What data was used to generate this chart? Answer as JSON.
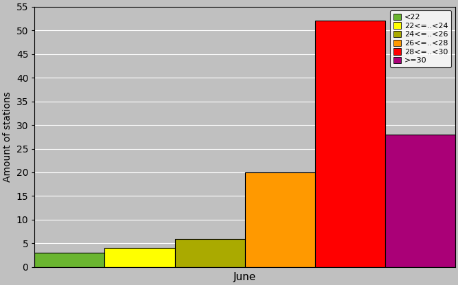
{
  "xlabel": "June",
  "ylabel": "Amount of stations",
  "ylim": [
    0,
    55
  ],
  "yticks": [
    0,
    5,
    10,
    15,
    20,
    25,
    30,
    35,
    40,
    45,
    50,
    55
  ],
  "categories": [
    "<22",
    "22<=..<24",
    "24<=..<26",
    "26<=..<28",
    "28<=..<30",
    ">=30"
  ],
  "values": [
    3,
    4,
    6,
    20,
    52,
    28
  ],
  "colors": [
    "#6ab530",
    "#ffff00",
    "#aaaa00",
    "#ff9900",
    "#ff0000",
    "#aa0077"
  ],
  "bar_width": 1.0,
  "background_color": "#c0c0c0",
  "edgecolor": "#000000",
  "legend_labels": [
    "<22",
    "22<=..<24",
    "24<=..<26",
    "26<=..<28",
    "28<=..<30",
    ">=30"
  ],
  "legend_colors": [
    "#6ab530",
    "#ffff00",
    "#aaaa00",
    "#ff9900",
    "#ff0000",
    "#aa0077"
  ]
}
